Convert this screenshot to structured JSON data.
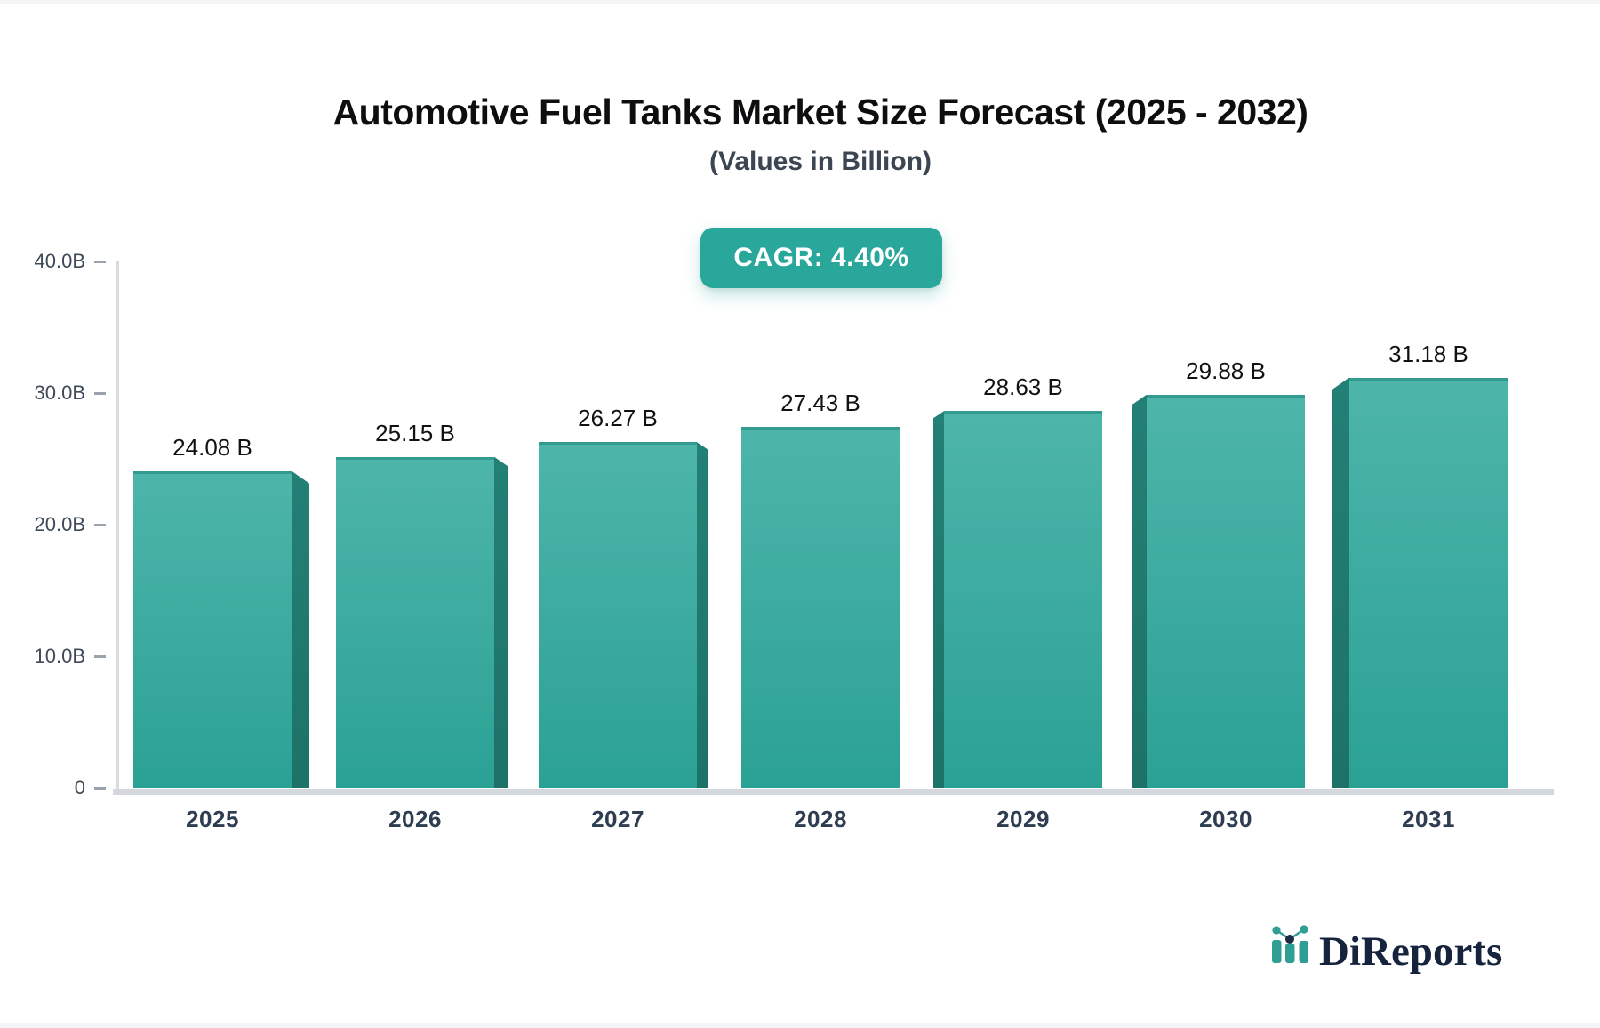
{
  "title": "Automotive Fuel Tanks Market Size Forecast (2025 - 2032)",
  "subtitle": "(Values in Billion)",
  "badge": {
    "label": "CAGR: 4.40%"
  },
  "chart_data": {
    "type": "bar",
    "title": "Automotive Fuel Tanks Market Size Forecast (2025 - 2032)",
    "subtitle": "(Values in Billion)",
    "categories": [
      "2025",
      "2026",
      "2027",
      "2028",
      "2029",
      "2030",
      "2031"
    ],
    "values": [
      24.08,
      25.15,
      26.27,
      27.43,
      28.63,
      29.88,
      31.18
    ],
    "value_labels": [
      "24.08 B",
      "25.15 B",
      "26.27 B",
      "27.43 B",
      "28.63 B",
      "29.88 B",
      "31.18 B"
    ],
    "cagr": "4.40%",
    "xlabel": "",
    "ylabel": "",
    "ylim": [
      0,
      40
    ],
    "yticks": [
      {
        "value": 0,
        "label": "0"
      },
      {
        "value": 10,
        "label": "10.0B"
      },
      {
        "value": 20,
        "label": "20.0B"
      },
      {
        "value": 30,
        "label": "30.0B"
      },
      {
        "value": 40,
        "label": "40.0B"
      }
    ],
    "grid": false,
    "legend": false,
    "bar_style": "3d-perspective-toward-center"
  },
  "watermark": {
    "brand": "DiReports"
  },
  "colors": {
    "accent_teal": "#2aa79b",
    "bar_top": "#4eb5aa",
    "bar_bottom": "#2ba195",
    "bar_side": "#207a6f",
    "axis_line": "#d9dcdf",
    "tick_text": "#3e4a57",
    "brand_navy": "#16233c"
  }
}
